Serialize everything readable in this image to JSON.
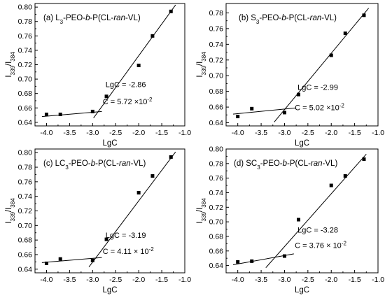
{
  "chart_data": [
    {
      "type": "scatter",
      "title_parts": [
        {
          "t": "(a) L"
        },
        {
          "t": "3",
          "sub": true
        },
        {
          "t": "-PEO-"
        },
        {
          "t": "b",
          "it": true
        },
        {
          "t": "-P(CL-"
        },
        {
          "t": "ran",
          "it": true
        },
        {
          "t": "-VL)"
        }
      ],
      "xlabel": "LgC",
      "ylabel": {
        "base": "I",
        "s1": "339",
        "mid": "/I",
        "s2": "384"
      },
      "xlim": [
        -4.25,
        -1.0
      ],
      "ylim": [
        0.635,
        0.805
      ],
      "xticks": [
        "-4.0",
        "-3.5",
        "-3.0",
        "-2.5",
        "-2.0",
        "-1.5",
        "-1.0"
      ],
      "yticks": [
        "0.64",
        "0.66",
        "0.68",
        "0.70",
        "0.72",
        "0.74",
        "0.76",
        "0.78",
        "0.80"
      ],
      "points": {
        "x": [
          -4.0,
          -3.7,
          -3.0,
          -2.7,
          -2.0,
          -1.7,
          -1.3
        ],
        "y": [
          0.651,
          0.651,
          0.655,
          0.676,
          0.719,
          0.76,
          0.794
        ]
      },
      "fit_lines": [
        {
          "x": [
            -4.1,
            -2.8
          ],
          "y": [
            0.648,
            0.655
          ]
        },
        {
          "x": [
            -2.98,
            -1.2
          ],
          "y": [
            0.646,
            0.803
          ]
        }
      ],
      "annotations": [
        {
          "text": "LgC = -2.86",
          "x": -2.72,
          "y": 0.689
        },
        {
          "text": "C = 5.72 ×10",
          "sup": "-2",
          "x": -2.78,
          "y": 0.665
        }
      ]
    },
    {
      "type": "scatter",
      "title_parts": [
        {
          "t": "(b) S"
        },
        {
          "t": "3",
          "sub": true
        },
        {
          "t": "-PEO-"
        },
        {
          "t": "b",
          "it": true
        },
        {
          "t": "-P(CL-"
        },
        {
          "t": "ran",
          "it": true
        },
        {
          "t": "-VL)"
        }
      ],
      "xlabel": "LgC",
      "ylabel": {
        "base": "I",
        "s1": "339",
        "mid": "/I",
        "s2": "384"
      },
      "xlim": [
        -4.25,
        -1.0
      ],
      "ylim": [
        0.636,
        0.792
      ],
      "xticks": [
        "-4.0",
        "-3.5",
        "-3.0",
        "-2.5",
        "-2.0",
        "-1.5",
        "-1.0"
      ],
      "yticks": [
        "0.64",
        "0.66",
        "0.68",
        "0.70",
        "0.72",
        "0.74",
        "0.76",
        "0.78"
      ],
      "points": {
        "x": [
          -4.0,
          -3.7,
          -3.0,
          -2.7,
          -2.0,
          -1.7,
          -1.3
        ],
        "y": [
          0.648,
          0.658,
          0.653,
          0.676,
          0.726,
          0.754,
          0.777
        ]
      },
      "fit_lines": [
        {
          "x": [
            -4.1,
            -2.75
          ],
          "y": [
            0.651,
            0.659
          ]
        },
        {
          "x": [
            -3.22,
            -1.2
          ],
          "y": [
            0.641,
            0.786
          ]
        }
      ],
      "annotations": [
        {
          "text": "LgC = -2.99",
          "x": -2.72,
          "y": 0.682
        },
        {
          "text": "C = 5.02 ×10",
          "sup": "-2",
          "x": -2.78,
          "y": 0.656
        }
      ]
    },
    {
      "type": "scatter",
      "title_parts": [
        {
          "t": "(c) LC"
        },
        {
          "t": "3",
          "sub": true
        },
        {
          "t": "-PEO-"
        },
        {
          "t": "b",
          "it": true
        },
        {
          "t": "-P(CL-"
        },
        {
          "t": "ran",
          "it": true
        },
        {
          "t": "-VL)"
        }
      ],
      "xlabel": "LgC",
      "ylabel": {
        "base": "I",
        "s1": "339",
        "mid": "/I",
        "s2": "384"
      },
      "xlim": [
        -4.25,
        -1.0
      ],
      "ylim": [
        0.635,
        0.805
      ],
      "xticks": [
        "-4.0",
        "-3.5",
        "-3.0",
        "-2.5",
        "-2.0",
        "-1.5",
        "-1.0"
      ],
      "yticks": [
        "0.64",
        "0.66",
        "0.68",
        "0.70",
        "0.72",
        "0.74",
        "0.76",
        "0.78",
        "0.80"
      ],
      "points": {
        "x": [
          -4.0,
          -3.7,
          -3.0,
          -2.7,
          -2.0,
          -1.7,
          -1.3
        ],
        "y": [
          0.648,
          0.654,
          0.652,
          0.681,
          0.745,
          0.768,
          0.794
        ]
      },
      "fit_lines": [
        {
          "x": [
            -4.1,
            -2.8
          ],
          "y": [
            0.649,
            0.656
          ]
        },
        {
          "x": [
            -3.08,
            -1.2
          ],
          "y": [
            0.643,
            0.801
          ]
        }
      ],
      "annotations": [
        {
          "text": "LgC = -3.19",
          "x": -2.72,
          "y": 0.683
        },
        {
          "text": "C = 4.11 × 10",
          "sup": "-2",
          "x": -2.78,
          "y": 0.661
        }
      ]
    },
    {
      "type": "scatter",
      "title_parts": [
        {
          "t": "(d) SC"
        },
        {
          "t": "3",
          "sub": true
        },
        {
          "t": "-PEO-"
        },
        {
          "t": "b",
          "it": true
        },
        {
          "t": "-P(CL-"
        },
        {
          "t": "ran",
          "it": true
        },
        {
          "t": "-VL)"
        }
      ],
      "xlabel": "LgC",
      "ylabel": {
        "base": "I",
        "s1": "339",
        "mid": "/I",
        "s2": "384"
      },
      "xlim": [
        -4.25,
        -1.0
      ],
      "ylim": [
        0.63,
        0.8
      ],
      "xticks": [
        "-4.0",
        "-3.5",
        "-3.0",
        "-2.5",
        "-2.0",
        "-1.5",
        "-1.0"
      ],
      "yticks": [
        "0.64",
        "0.66",
        "0.68",
        "0.70",
        "0.72",
        "0.74",
        "0.76",
        "0.78",
        "0.80"
      ],
      "points": {
        "x": [
          -4.0,
          -3.7,
          -3.0,
          -2.7,
          -2.0,
          -1.7,
          -1.3
        ],
        "y": [
          0.645,
          0.646,
          0.653,
          0.703,
          0.75,
          0.763,
          0.786
        ]
      },
      "fit_lines": [
        {
          "x": [
            -4.1,
            -2.8
          ],
          "y": [
            0.641,
            0.656
          ]
        },
        {
          "x": [
            -3.4,
            -1.25
          ],
          "y": [
            0.637,
            0.793
          ]
        }
      ],
      "annotations": [
        {
          "text": "LgC = -3.28",
          "x": -2.72,
          "y": 0.685
        },
        {
          "text": "C = 3.76 × 10",
          "sup": "-2",
          "x": -2.78,
          "y": 0.664
        }
      ]
    }
  ]
}
